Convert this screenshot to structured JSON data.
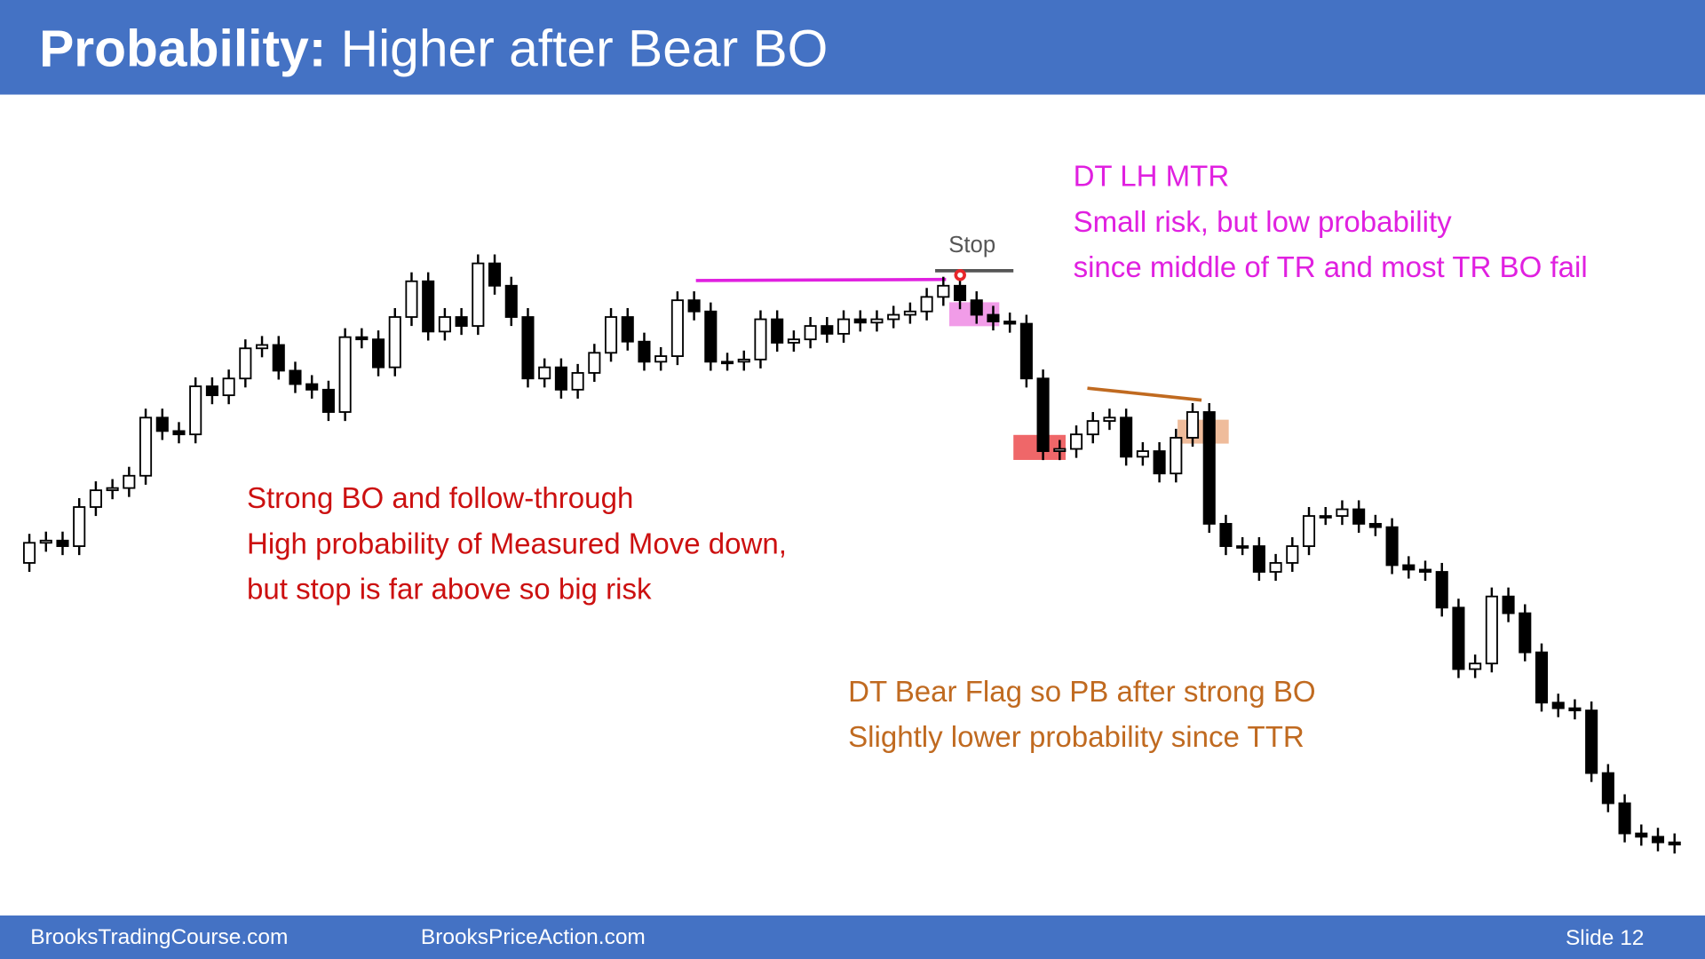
{
  "header": {
    "title_bold": "Probability:",
    "title_rest": "Higher after Bear BO"
  },
  "footer": {
    "left": "BrooksTradingCourse.com",
    "middle": "BrooksPriceAction.com",
    "slide": "Slide  12"
  },
  "annotations": {
    "stop": "Stop",
    "magenta": [
      "DT LH MTR",
      "Small risk, but low probability",
      "since middle of TR and most TR BO fail"
    ],
    "red": [
      "Strong BO and follow-through",
      "High probability of Measured Move  down,",
      "but stop is far above so big risk"
    ],
    "brown": [
      "DT Bear Flag so PB after strong BO",
      "Slightly lower probability since TTR"
    ]
  },
  "chart_data": {
    "type": "candlestick",
    "open": [
      290,
      308,
      310,
      305,
      340,
      355,
      357,
      368,
      420,
      408,
      405,
      448,
      440,
      455,
      482,
      485,
      462,
      450,
      445,
      425,
      492,
      490,
      465,
      510,
      542,
      497,
      510,
      502,
      558,
      538,
      510,
      455,
      465,
      445,
      460,
      478,
      510,
      488,
      470,
      475,
      525,
      515,
      470,
      470,
      472,
      508,
      487,
      490,
      502,
      495,
      508,
      505,
      508,
      512,
      515,
      528,
      538,
      525,
      512,
      506,
      504,
      455,
      390,
      392,
      405,
      417,
      420,
      385,
      390,
      370,
      402,
      425,
      325,
      305,
      305,
      282,
      290,
      305,
      332,
      332,
      338,
      325,
      322,
      288,
      284,
      282,
      250,
      195,
      200,
      260,
      245,
      210,
      165,
      160,
      158,
      102,
      75,
      48,
      45,
      40
    ],
    "high": [
      316,
      318,
      318,
      348,
      363,
      365,
      376,
      428,
      428,
      416,
      456,
      456,
      463,
      490,
      493,
      493,
      470,
      458,
      453,
      500,
      500,
      498,
      518,
      550,
      550,
      518,
      518,
      566,
      566,
      546,
      518,
      473,
      473,
      468,
      486,
      518,
      518,
      496,
      483,
      533,
      533,
      523,
      478,
      480,
      516,
      516,
      498,
      510,
      510,
      516,
      516,
      516,
      520,
      523,
      536,
      546,
      546,
      533,
      520,
      514,
      512,
      463,
      400,
      413,
      425,
      428,
      428,
      398,
      398,
      410,
      433,
      433,
      333,
      313,
      313,
      298,
      313,
      340,
      340,
      346,
      346,
      333,
      330,
      296,
      292,
      290,
      258,
      208,
      268,
      268,
      253,
      218,
      173,
      168,
      166,
      110,
      83,
      56,
      53,
      48
    ],
    "low": [
      282,
      300,
      297,
      297,
      332,
      347,
      349,
      360,
      400,
      397,
      397,
      432,
      432,
      447,
      474,
      454,
      442,
      437,
      417,
      417,
      482,
      457,
      457,
      502,
      489,
      489,
      494,
      494,
      530,
      502,
      447,
      447,
      437,
      437,
      452,
      470,
      480,
      462,
      462,
      467,
      507,
      462,
      462,
      462,
      464,
      479,
      479,
      482,
      487,
      487,
      497,
      497,
      500,
      504,
      507,
      520,
      517,
      504,
      498,
      496,
      447,
      382,
      382,
      384,
      397,
      409,
      377,
      377,
      362,
      362,
      394,
      317,
      297,
      297,
      274,
      274,
      282,
      297,
      324,
      324,
      317,
      314,
      280,
      276,
      274,
      242,
      187,
      187,
      192,
      237,
      202,
      157,
      152,
      150,
      94,
      67,
      40,
      37,
      32,
      30
    ],
    "close": [
      308,
      310,
      305,
      340,
      355,
      357,
      368,
      420,
      408,
      405,
      448,
      440,
      455,
      482,
      485,
      462,
      450,
      445,
      425,
      492,
      490,
      465,
      510,
      542,
      497,
      510,
      502,
      558,
      538,
      510,
      455,
      465,
      445,
      460,
      478,
      510,
      488,
      470,
      475,
      525,
      515,
      470,
      470,
      472,
      508,
      487,
      490,
      502,
      495,
      508,
      505,
      508,
      512,
      515,
      528,
      538,
      525,
      512,
      506,
      504,
      455,
      390,
      392,
      405,
      417,
      420,
      385,
      390,
      370,
      402,
      425,
      325,
      305,
      305,
      282,
      290,
      305,
      332,
      332,
      338,
      325,
      322,
      288,
      284,
      282,
      250,
      195,
      200,
      260,
      245,
      210,
      165,
      160,
      158,
      102,
      75,
      48,
      45,
      40,
      38
    ],
    "up_color": "#ffffff",
    "down_color": "#000000"
  }
}
